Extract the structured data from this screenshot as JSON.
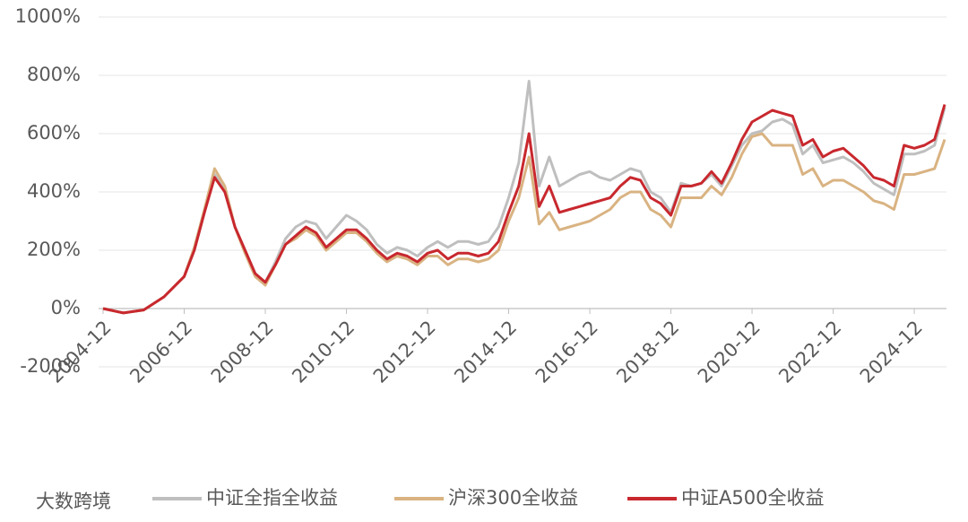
{
  "chart_data": {
    "type": "line",
    "x": [
      "2004-12",
      "2005-06",
      "2005-12",
      "2006-06",
      "2006-12",
      "2007-03",
      "2007-06",
      "2007-09",
      "2007-12",
      "2008-03",
      "2008-06",
      "2008-09",
      "2008-12",
      "2009-03",
      "2009-06",
      "2009-09",
      "2009-12",
      "2010-03",
      "2010-06",
      "2010-09",
      "2010-12",
      "2011-03",
      "2011-06",
      "2011-09",
      "2011-12",
      "2012-03",
      "2012-06",
      "2012-09",
      "2012-12",
      "2013-03",
      "2013-06",
      "2013-09",
      "2013-12",
      "2014-03",
      "2014-06",
      "2014-09",
      "2014-12",
      "2015-03",
      "2015-06",
      "2015-09",
      "2015-12",
      "2016-03",
      "2016-06",
      "2016-09",
      "2016-12",
      "2017-03",
      "2017-06",
      "2017-09",
      "2017-12",
      "2018-03",
      "2018-06",
      "2018-09",
      "2018-12",
      "2019-03",
      "2019-06",
      "2019-09",
      "2019-12",
      "2020-03",
      "2020-06",
      "2020-09",
      "2020-12",
      "2021-03",
      "2021-06",
      "2021-09",
      "2021-12",
      "2022-03",
      "2022-06",
      "2022-09",
      "2022-12",
      "2023-03",
      "2023-06",
      "2023-09",
      "2023-12",
      "2024-03",
      "2024-06",
      "2024-09",
      "2024-12",
      "2025-03",
      "2025-06",
      "2025-09"
    ],
    "series": [
      {
        "name": "中证全指全收益",
        "color": "#bfbfbf",
        "values": [
          0,
          -15,
          -5,
          40,
          110,
          200,
          330,
          460,
          410,
          280,
          200,
          120,
          90,
          160,
          240,
          280,
          300,
          290,
          240,
          280,
          320,
          300,
          270,
          220,
          190,
          210,
          200,
          180,
          210,
          230,
          210,
          230,
          230,
          220,
          230,
          280,
          380,
          500,
          780,
          420,
          520,
          420,
          440,
          460,
          470,
          450,
          440,
          460,
          480,
          470,
          400,
          380,
          330,
          430,
          420,
          430,
          460,
          420,
          490,
          560,
          600,
          610,
          640,
          650,
          630,
          530,
          560,
          500,
          510,
          520,
          500,
          470,
          430,
          410,
          390,
          530,
          530,
          540,
          560,
          690
        ]
      },
      {
        "name": "沪深300全收益",
        "color": "#d9b382",
        "values": [
          0,
          -15,
          -5,
          40,
          110,
          210,
          340,
          480,
          420,
          280,
          190,
          110,
          80,
          150,
          220,
          240,
          270,
          250,
          200,
          230,
          260,
          260,
          230,
          190,
          160,
          180,
          170,
          150,
          180,
          180,
          150,
          170,
          170,
          160,
          170,
          200,
          300,
          380,
          520,
          290,
          330,
          270,
          280,
          290,
          300,
          320,
          340,
          380,
          400,
          400,
          340,
          320,
          280,
          380,
          380,
          380,
          420,
          390,
          450,
          530,
          590,
          600,
          560,
          560,
          560,
          460,
          480,
          420,
          440,
          440,
          420,
          400,
          370,
          360,
          340,
          460,
          460,
          470,
          480,
          580
        ]
      },
      {
        "name": "中证A500全收益",
        "color": "#c8282e",
        "values": [
          0,
          -15,
          -5,
          40,
          110,
          200,
          330,
          450,
          400,
          280,
          200,
          120,
          90,
          150,
          220,
          250,
          280,
          260,
          210,
          240,
          270,
          270,
          240,
          200,
          170,
          190,
          180,
          160,
          190,
          200,
          170,
          190,
          190,
          180,
          190,
          230,
          330,
          420,
          600,
          350,
          420,
          330,
          340,
          350,
          360,
          370,
          380,
          420,
          450,
          440,
          380,
          360,
          320,
          420,
          420,
          430,
          470,
          430,
          500,
          580,
          640,
          660,
          680,
          670,
          660,
          560,
          580,
          520,
          540,
          550,
          520,
          490,
          450,
          440,
          420,
          560,
          550,
          560,
          580,
          700
        ]
      }
    ],
    "xlim": [
      "2004-12",
      "2025-09"
    ],
    "xticks": [
      "2004-12",
      "2006-12",
      "2008-12",
      "2010-12",
      "2012-12",
      "2014-12",
      "2016-12",
      "2018-12",
      "2020-12",
      "2022-12",
      "2024-12"
    ],
    "ylim": [
      -200,
      1000
    ],
    "yticks": [
      {
        "value": -200,
        "label": "-200%"
      },
      {
        "value": 0,
        "label": "0%"
      },
      {
        "value": 200,
        "label": "200%"
      },
      {
        "value": 400,
        "label": "400%"
      },
      {
        "value": 600,
        "label": "600%"
      },
      {
        "value": 800,
        "label": "800%"
      },
      {
        "value": 1000,
        "label": "1000%"
      }
    ],
    "grid": true,
    "legend": "bottom",
    "watermark": "大数跨境"
  }
}
